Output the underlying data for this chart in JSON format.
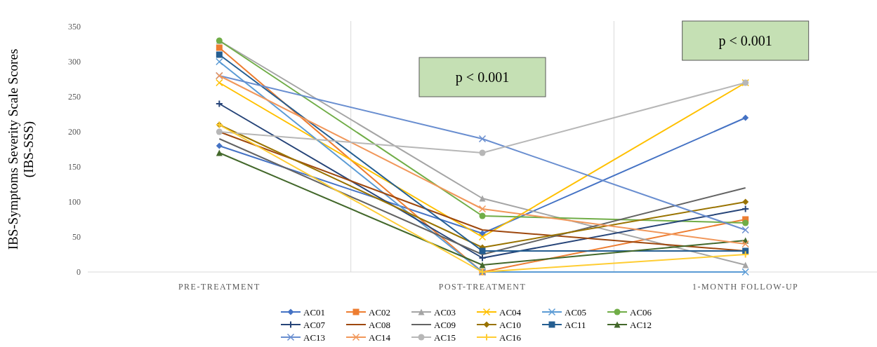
{
  "chart_data": {
    "type": "line",
    "ylabel": "IBS-Symptoms Severity Scale Scores\n(IBS-SSS)",
    "categories": [
      "PRE-TREATMENT",
      "POST-TREATMENT",
      "1-MONTH FOLLOW-UP"
    ],
    "ylim": [
      0,
      350
    ],
    "yticks": [
      0,
      50,
      100,
      150,
      200,
      250,
      300,
      350
    ],
    "grid": "x",
    "legend": "bottom",
    "annotations": [
      "p < 0.001",
      "p < 0.001"
    ],
    "series": [
      {
        "name": "AC01",
        "color": "#4472c4",
        "marker": "diamond",
        "values": [
          180,
          55,
          220
        ]
      },
      {
        "name": "AC02",
        "color": "#ed7d31",
        "marker": "square",
        "values": [
          320,
          0,
          75
        ]
      },
      {
        "name": "AC03",
        "color": "#a5a5a5",
        "marker": "triangle",
        "values": [
          330,
          105,
          10
        ]
      },
      {
        "name": "AC04",
        "color": "#ffc000",
        "marker": "cross",
        "values": [
          270,
          50,
          270
        ]
      },
      {
        "name": "AC05",
        "color": "#5b9bd5",
        "marker": "cross",
        "values": [
          300,
          0,
          0
        ]
      },
      {
        "name": "AC06",
        "color": "#70ad47",
        "marker": "circle",
        "values": [
          330,
          80,
          70
        ]
      },
      {
        "name": "AC07",
        "color": "#264478",
        "marker": "plus",
        "values": [
          240,
          20,
          90
        ]
      },
      {
        "name": "AC08",
        "color": "#9e480e",
        "marker": "none",
        "values": [
          200,
          60,
          30
        ]
      },
      {
        "name": "AC09",
        "color": "#636363",
        "marker": "none",
        "values": [
          190,
          25,
          120
        ]
      },
      {
        "name": "AC10",
        "color": "#997300",
        "marker": "diamond",
        "values": [
          210,
          35,
          100
        ]
      },
      {
        "name": "AC11",
        "color": "#255e91",
        "marker": "square",
        "values": [
          310,
          30,
          30
        ]
      },
      {
        "name": "AC12",
        "color": "#43682b",
        "marker": "triangle",
        "values": [
          170,
          10,
          45
        ]
      },
      {
        "name": "AC13",
        "color": "#698ed0",
        "marker": "cross",
        "values": [
          280,
          190,
          60
        ]
      },
      {
        "name": "AC14",
        "color": "#f1975a",
        "marker": "cross",
        "values": [
          280,
          90,
          40
        ]
      },
      {
        "name": "AC15",
        "color": "#b7b7b7",
        "marker": "circle",
        "values": [
          200,
          170,
          270
        ]
      },
      {
        "name": "AC16",
        "color": "#ffcd33",
        "marker": "plus",
        "values": [
          210,
          0,
          25
        ]
      }
    ]
  }
}
